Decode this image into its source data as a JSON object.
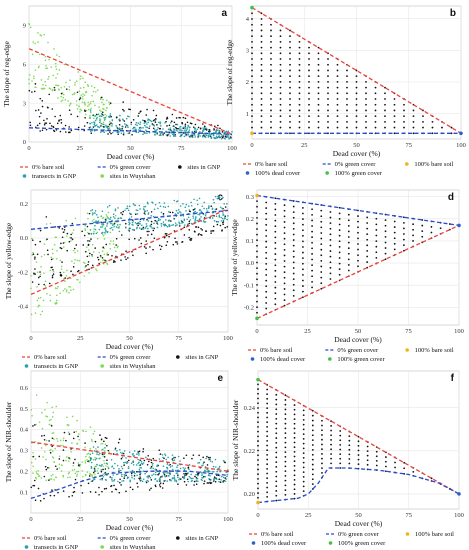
{
  "chart_data": [
    {
      "panel": "a",
      "type": "scatter",
      "xlabel": "Dead cover (%)",
      "ylabel": "The slope of reg-edge",
      "xlim": [
        0,
        100
      ],
      "ylim": [
        0,
        10.5
      ],
      "xticks": [
        "0",
        "25",
        "50",
        "75",
        "100"
      ],
      "xtick_values": [
        0,
        25,
        50,
        75,
        100
      ],
      "yticks": [
        "0",
        "3",
        "6",
        "9"
      ],
      "ytick_values": [
        0,
        3,
        6,
        9
      ],
      "grid": true,
      "legend_position": "bottom",
      "scatter_series": [
        {
          "key": "wuy",
          "color": "#7ed957",
          "cloud": {
            "x0": 0,
            "x1": 40,
            "y0": [
              4.5,
              9.8
            ],
            "y1": [
              1.0,
              3.0
            ],
            "n": 180
          }
        },
        {
          "key": "gnp",
          "color": "#111111",
          "cloud": {
            "x0": 0,
            "x1": 100,
            "y0": [
              0.8,
              5.0
            ],
            "y1": [
              0.3,
              1.0
            ],
            "n": 240
          }
        },
        {
          "key": "tr",
          "color": "#2aa1a8",
          "cloud": {
            "x0": 30,
            "x1": 100,
            "y0": [
              0.8,
              2.5
            ],
            "y1": [
              0.2,
              0.8
            ],
            "n": 320
          }
        }
      ],
      "trend_lines": [
        {
          "key": "bare",
          "color": "#e8443a",
          "x": [
            0,
            100
          ],
          "y": [
            7.2,
            0.6
          ]
        },
        {
          "key": "green",
          "color": "#2b4acb",
          "x": [
            0,
            100
          ],
          "y": [
            1.1,
            0.6
          ]
        }
      ],
      "legend": [
        {
          "label": "0% bare soil",
          "color": "#e8443a",
          "style": "line"
        },
        {
          "label": "0% green cover",
          "color": "#2b4acb",
          "style": "line"
        },
        {
          "label": "sites in GNP",
          "color": "#111111",
          "style": "dot"
        },
        {
          "label": "transects in GNP",
          "color": "#2aa1a8",
          "style": "dot"
        },
        {
          "label": "sites in Wuyishan",
          "color": "#7ed957",
          "style": "dot"
        }
      ]
    },
    {
      "panel": "b",
      "type": "scatter",
      "xlabel": "Dead cover (%)",
      "ylabel": "The slope of reg-edge",
      "xlim": [
        0,
        100
      ],
      "ylim": [
        0.2,
        4.4
      ],
      "xticks": [
        "0",
        "25",
        "50",
        "75",
        "100"
      ],
      "xtick_values": [
        0,
        25,
        50,
        75,
        100
      ],
      "yticks": [
        "1",
        "2",
        "3",
        "4"
      ],
      "ytick_values": [
        1,
        2,
        3,
        4
      ],
      "grid": true,
      "legend_position": "bottom",
      "simplex": {
        "a": [
          0,
          4.35
        ],
        "b": [
          0,
          0.38
        ],
        "c": [
          100,
          0.38
        ],
        "step": 4.545
      },
      "trend_lines": [
        {
          "key": "bare",
          "color": "#e8443a",
          "x": [
            0,
            100
          ],
          "y": [
            4.35,
            0.38
          ]
        },
        {
          "key": "green",
          "color": "#2b4acb",
          "x": [
            0,
            100
          ],
          "y": [
            0.38,
            0.38
          ]
        }
      ],
      "corner_points": [
        {
          "key": "bare100",
          "color": "#f2b21b",
          "x": 0,
          "y": 0.38
        },
        {
          "key": "dead100",
          "color": "#2b62cc",
          "x": 100,
          "y": 0.38
        },
        {
          "key": "green100",
          "color": "#3fc14a",
          "x": 0,
          "y": 4.35
        }
      ],
      "legend": [
        {
          "label": "0% bare soil",
          "color": "#e8443a",
          "style": "line"
        },
        {
          "label": "0% green cover",
          "color": "#2b4acb",
          "style": "line"
        },
        {
          "label": "100% bare soil",
          "color": "#f2b21b",
          "style": "dot"
        },
        {
          "label": "100% dead cover",
          "color": "#2b62cc",
          "style": "dot"
        },
        {
          "label": "100% green cover",
          "color": "#3fc14a",
          "style": "dot"
        }
      ]
    },
    {
      "panel": "c",
      "type": "scatter",
      "xlabel": "Dead cover (%)",
      "ylabel": "The slope of yellow-edge",
      "xlim": [
        0,
        100
      ],
      "ylim": [
        -0.55,
        0.28
      ],
      "xticks": [
        "0",
        "25",
        "50",
        "75",
        "100"
      ],
      "xtick_values": [
        0,
        25,
        50,
        75,
        100
      ],
      "yticks": [
        "-0.4",
        "-0.2",
        "0.0",
        "0.2"
      ],
      "ytick_values": [
        -0.4,
        -0.2,
        0.0,
        0.2
      ],
      "grid": true,
      "legend_position": "bottom",
      "scatter_series": [
        {
          "key": "wuy",
          "color": "#7ed957",
          "cloud": {
            "x0": 0,
            "x1": 45,
            "y0": [
              -0.5,
              0.1
            ],
            "y1": [
              -0.1,
              0.18
            ],
            "n": 180
          }
        },
        {
          "key": "gnp",
          "color": "#111111",
          "cloud": {
            "x0": 0,
            "x1": 100,
            "y0": [
              -0.3,
              0.12
            ],
            "y1": [
              0.05,
              0.2
            ],
            "n": 240
          }
        },
        {
          "key": "tr",
          "color": "#2aa1a8",
          "cloud": {
            "x0": 30,
            "x1": 100,
            "y0": [
              0.02,
              0.18
            ],
            "y1": [
              0.1,
              0.25
            ],
            "n": 320
          }
        }
      ],
      "trend_lines": [
        {
          "key": "bare",
          "color": "#e8443a",
          "x": [
            0,
            100
          ],
          "y": [
            -0.33,
            0.17
          ]
        },
        {
          "key": "green",
          "color": "#2b4acb",
          "x": [
            0,
            100
          ],
          "y": [
            0.05,
            0.16
          ]
        }
      ],
      "legend": [
        {
          "label": "0% bare soil",
          "color": "#e8443a",
          "style": "line"
        },
        {
          "label": "0% green cover",
          "color": "#2b4acb",
          "style": "line"
        },
        {
          "label": "sites in GNP",
          "color": "#111111",
          "style": "dot"
        },
        {
          "label": "transects in GNP",
          "color": "#2aa1a8",
          "style": "dot"
        },
        {
          "label": "sites in Wuyishan",
          "color": "#7ed957",
          "style": "dot"
        }
      ]
    },
    {
      "panel": "d",
      "type": "scatter",
      "xlabel": "Dead cover (%)",
      "ylabel": "The slope of yellow-edge",
      "xlim": [
        0,
        100
      ],
      "ylim": [
        -0.28,
        0.33
      ],
      "xticks": [
        "0",
        "25",
        "50",
        "75",
        "100"
      ],
      "xtick_values": [
        0,
        25,
        50,
        75,
        100
      ],
      "yticks": [
        "-0.2",
        "-0.1",
        "0.0",
        "0.1",
        "0.2",
        "0.3"
      ],
      "ytick_values": [
        -0.2,
        -0.1,
        0.0,
        0.1,
        0.2,
        0.3
      ],
      "grid": true,
      "legend_position": "bottom",
      "simplex": {
        "a": [
          0,
          0.305
        ],
        "b": [
          0,
          -0.25
        ],
        "c": [
          100,
          0.17
        ],
        "step": 4.545
      },
      "trend_lines": [
        {
          "key": "bare",
          "color": "#e8443a",
          "x": [
            0,
            100
          ],
          "y": [
            -0.25,
            0.17
          ]
        },
        {
          "key": "green",
          "color": "#2b4acb",
          "x": [
            0,
            100
          ],
          "y": [
            0.305,
            0.17
          ]
        }
      ],
      "corner_points": [
        {
          "key": "bare100",
          "color": "#f2b21b",
          "x": 0,
          "y": 0.305
        },
        {
          "key": "dead100",
          "color": "#2b62cc",
          "x": 100,
          "y": 0.17
        },
        {
          "key": "green100",
          "color": "#3fc14a",
          "x": 0,
          "y": -0.25
        }
      ],
      "legend": [
        {
          "label": "0% bare soil",
          "color": "#e8443a",
          "style": "line"
        },
        {
          "label": "0% green cover",
          "color": "#2b4acb",
          "style": "line"
        },
        {
          "label": "100% bare soil",
          "color": "#f2b21b",
          "style": "dot"
        },
        {
          "label": "100% dead cover",
          "color": "#2b62cc",
          "style": "dot"
        },
        {
          "label": "100% green cover",
          "color": "#3fc14a",
          "style": "dot"
        }
      ]
    },
    {
      "panel": "e",
      "type": "scatter",
      "xlabel": "Dead cover (%)",
      "ylabel": "The slope of NIR-shoulder",
      "xlim": [
        0,
        100
      ],
      "ylim": [
        0.0,
        0.68
      ],
      "xticks": [
        "0",
        "25",
        "50",
        "75",
        "100"
      ],
      "xtick_values": [
        0,
        25,
        50,
        75,
        100
      ],
      "yticks": [
        "0.1",
        "0.2",
        "0.3",
        "0.4",
        "0.5",
        "0.6"
      ],
      "ytick_values": [
        0.1,
        0.2,
        0.3,
        0.4,
        0.5,
        0.6
      ],
      "grid": true,
      "legend_position": "bottom",
      "scatter_series": [
        {
          "key": "wuy",
          "color": "#7ed957",
          "cloud": {
            "x0": 0,
            "x1": 40,
            "y0": [
              0.15,
              0.6
            ],
            "y1": [
              0.18,
              0.35
            ],
            "n": 180
          }
        },
        {
          "key": "gnp",
          "color": "#111111",
          "cloud": {
            "x0": 0,
            "x1": 100,
            "y0": [
              0.05,
              0.45
            ],
            "y1": [
              0.15,
              0.25
            ],
            "n": 240
          }
        },
        {
          "key": "tr",
          "color": "#2aa1a8",
          "cloud": {
            "x0": 30,
            "x1": 100,
            "y0": [
              0.15,
              0.32
            ],
            "y1": [
              0.15,
              0.25
            ],
            "n": 320
          }
        }
      ],
      "trend_lines": [
        {
          "key": "bare",
          "color": "#e8443a",
          "x": [
            0,
            100
          ],
          "y": [
            0.34,
            0.2
          ]
        },
        {
          "key": "green",
          "color": "#2b4acb",
          "x": [
            0,
            10,
            25,
            40,
            60,
            80,
            100
          ],
          "y": [
            0.07,
            0.1,
            0.15,
            0.19,
            0.2,
            0.2,
            0.18
          ]
        }
      ],
      "legend": [
        {
          "label": "0% bare soil",
          "color": "#e8443a",
          "style": "line"
        },
        {
          "label": "0% green cover",
          "color": "#2b4acb",
          "style": "line"
        },
        {
          "label": "sites in GNP",
          "color": "#111111",
          "style": "dot"
        },
        {
          "label": "transects in GNP",
          "color": "#2aa1a8",
          "style": "dot"
        },
        {
          "label": "sites in Wuyishan",
          "color": "#7ed957",
          "style": "dot"
        }
      ]
    },
    {
      "panel": "f",
      "type": "scatter",
      "xlabel": "Dead cover (%)",
      "ylabel": "The slope of NIR-shoulder",
      "xlim": [
        0,
        100
      ],
      "ylim": [
        0.193,
        0.257
      ],
      "xticks": [
        "0",
        "25",
        "50",
        "75",
        "100"
      ],
      "xtick_values": [
        0,
        25,
        50,
        75,
        100
      ],
      "yticks": [
        "0.20",
        "0.22",
        "0.24"
      ],
      "ytick_values": [
        0.2,
        0.22,
        0.24
      ],
      "grid": true,
      "legend_position": "bottom",
      "fan": {
        "top": {
          "x": [
            0,
            100
          ],
          "y": [
            0.253,
            0.2
          ]
        },
        "bottom": {
          "x": [
            0,
            10,
            20,
            25,
            30,
            35,
            45,
            60,
            75,
            90,
            100
          ],
          "y": [
            0.196,
            0.197,
            0.198,
            0.2,
            0.205,
            0.212,
            0.212,
            0.211,
            0.209,
            0.205,
            0.2
          ]
        },
        "step": 4.545
      },
      "trend_lines": [
        {
          "key": "bare",
          "color": "#e8443a",
          "x": [
            0,
            100
          ],
          "y": [
            0.253,
            0.2
          ]
        },
        {
          "key": "green",
          "color": "#2b4acb",
          "x": [
            0,
            10,
            20,
            25,
            30,
            35,
            45,
            60,
            75,
            90,
            100
          ],
          "y": [
            0.196,
            0.197,
            0.198,
            0.2,
            0.205,
            0.212,
            0.212,
            0.211,
            0.209,
            0.205,
            0.2
          ]
        }
      ],
      "corner_points": [
        {
          "key": "bare100",
          "color": "#f2b21b",
          "x": 0,
          "y": 0.196
        },
        {
          "key": "dead100",
          "color": "#2b62cc",
          "x": 100,
          "y": 0.2
        },
        {
          "key": "green100",
          "color": "#3fc14a",
          "x": 0,
          "y": 0.253
        }
      ],
      "legend": [
        {
          "label": "0% bare soil",
          "color": "#e8443a",
          "style": "line"
        },
        {
          "label": "0% green cover",
          "color": "#2b4acb",
          "style": "line"
        },
        {
          "label": "100% bare soil",
          "color": "#f2b21b",
          "style": "dot"
        },
        {
          "label": "100% dead cover",
          "color": "#2b62cc",
          "style": "dot"
        },
        {
          "label": "100% green cover",
          "color": "#3fc14a",
          "style": "dot"
        }
      ]
    }
  ]
}
